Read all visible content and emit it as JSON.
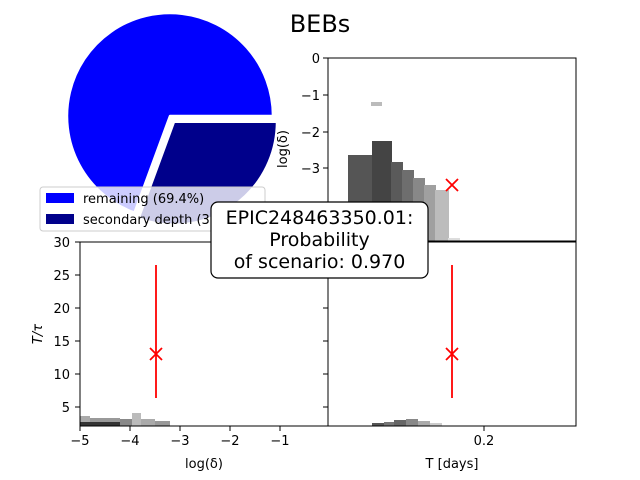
{
  "title": "BEBs",
  "chart_data": [
    {
      "type": "pie",
      "slices": [
        {
          "label": "remaining",
          "value": 69.4,
          "color": "#0000ff",
          "legend": "remaining (69.4%)"
        },
        {
          "label": "secondary depth",
          "value": 30.6,
          "color": "#00008b",
          "exploded": true,
          "legend": "secondary depth (30.6%)"
        }
      ],
      "legend_placement": "lower-left"
    },
    {
      "type": "heatmap",
      "ylabel": "log(δ)",
      "ylim": [
        -5,
        0
      ],
      "yticks": [
        "0",
        "−1",
        "−2",
        "−3"
      ],
      "marker": {
        "x": 0.3,
        "y": -3.45,
        "color": "#ff0000"
      }
    },
    {
      "type": "heatmap",
      "xlabel": "log(δ)",
      "ylabel": "T/τ",
      "xlim": [
        -5,
        0
      ],
      "ylim": [
        2,
        30
      ],
      "xticks": [
        "−5",
        "−4",
        "−3",
        "−2",
        "−1"
      ],
      "yticks": [
        "5",
        "10",
        "15",
        "20",
        "25",
        "30"
      ],
      "marker": {
        "x": -3.45,
        "y": 13,
        "ylow": 6.3,
        "yhigh": 26.5,
        "color": "#ff0000"
      }
    },
    {
      "type": "heatmap",
      "xlabel": "T [days]",
      "xticks": [
        "0.2"
      ],
      "marker": {
        "x": 0.165,
        "y": 13,
        "ylow": 6.3,
        "yhigh": 26.5,
        "color": "#ff0000"
      }
    }
  ],
  "annotation": {
    "line1": "EPIC248463350.01:",
    "line2": "Probability",
    "line3": "of scenario: 0.970"
  }
}
